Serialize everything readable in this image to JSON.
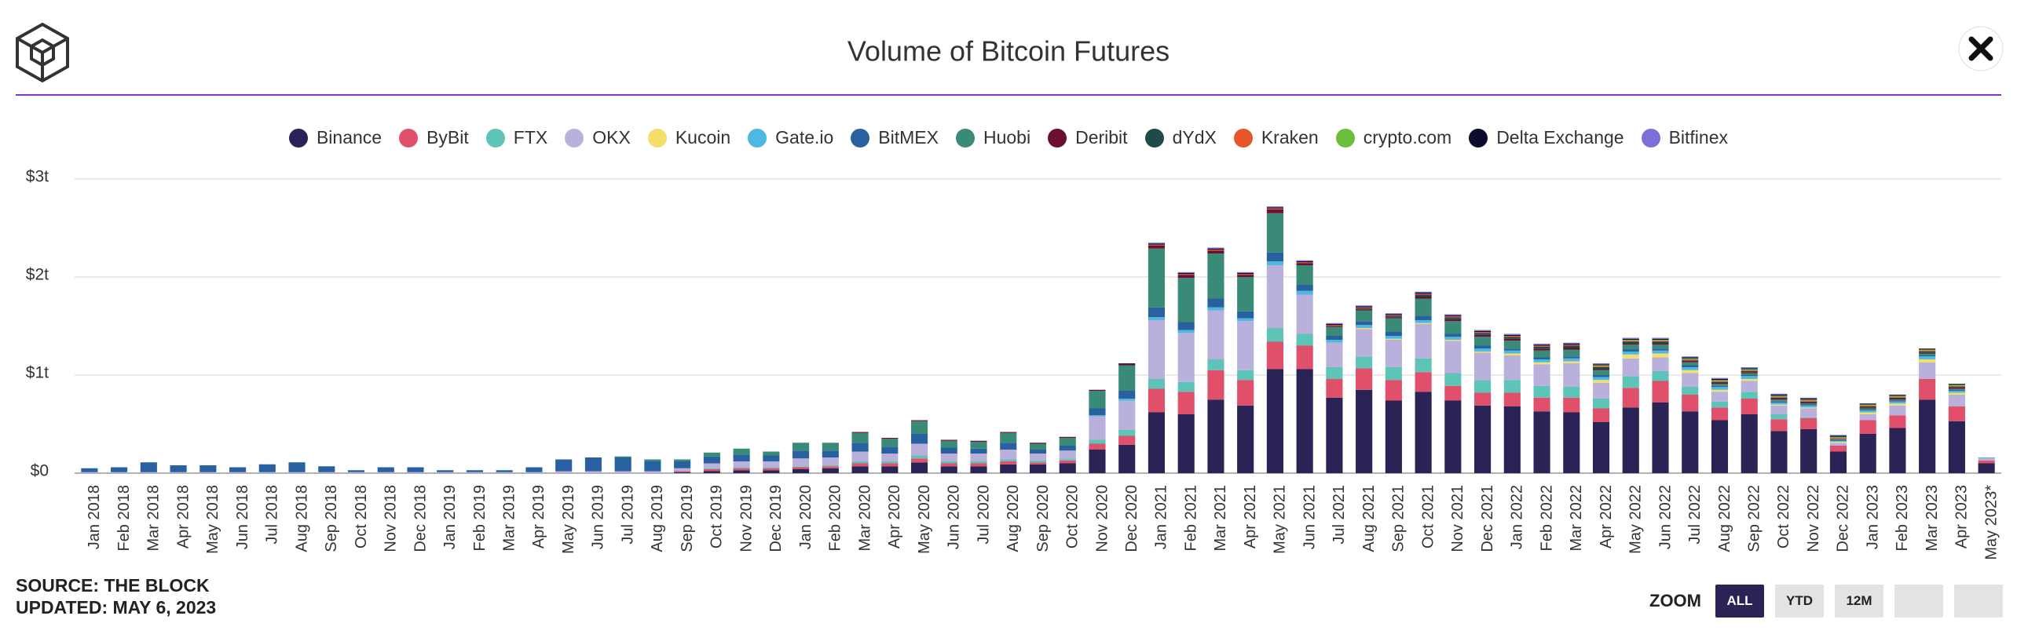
{
  "chart_data": {
    "type": "bar",
    "stacked": true,
    "title": "Volume of Bitcoin Futures",
    "categories": [
      "Jan 2018",
      "Feb 2018",
      "Mar 2018",
      "Apr 2018",
      "May 2018",
      "Jun 2018",
      "Jul 2018",
      "Aug 2018",
      "Sep 2018",
      "Oct 2018",
      "Nov 2018",
      "Dec 2018",
      "Jan 2019",
      "Feb 2019",
      "Mar 2019",
      "Apr 2019",
      "May 2019",
      "Jun 2019",
      "Jul 2019",
      "Aug 2019",
      "Sep 2019",
      "Oct 2019",
      "Nov 2019",
      "Dec 2019",
      "Jan 2020",
      "Feb 2020",
      "Mar 2020",
      "Apr 2020",
      "May 2020",
      "Jun 2020",
      "Jul 2020",
      "Aug 2020",
      "Sep 2020",
      "Oct 2020",
      "Nov 2020",
      "Dec 2020",
      "Jan 2021",
      "Feb 2021",
      "Mar 2021",
      "Apr 2021",
      "May 2021",
      "Jun 2021",
      "Jul 2021",
      "Aug 2021",
      "Sep 2021",
      "Oct 2021",
      "Nov 2021",
      "Dec 2021",
      "Jan 2022",
      "Feb 2022",
      "Mar 2022",
      "Apr 2022",
      "May 2022",
      "Jun 2022",
      "Jul 2022",
      "Aug 2022",
      "Sep 2022",
      "Oct 2022",
      "Nov 2022",
      "Dec 2022",
      "Jan 2023",
      "Feb 2023",
      "Mar 2023",
      "Apr 2023",
      "May 2023*"
    ],
    "ylim": [
      0,
      3
    ],
    "yticks": [
      {
        "value": 0,
        "label": "$0"
      },
      {
        "value": 1,
        "label": "$1t"
      },
      {
        "value": 2,
        "label": "$2t"
      },
      {
        "value": 3,
        "label": "$3t"
      }
    ],
    "grid": true,
    "legend": "top",
    "series": [
      {
        "name": "Binance",
        "color": "#2a2356",
        "values": [
          0,
          0,
          0,
          0,
          0,
          0,
          0,
          0,
          0,
          0,
          0,
          0,
          0,
          0,
          0,
          0,
          0,
          0,
          0,
          0,
          0.01,
          0.02,
          0.03,
          0.03,
          0.04,
          0.05,
          0.07,
          0.07,
          0.11,
          0.07,
          0.07,
          0.09,
          0.09,
          0.1,
          0.24,
          0.29,
          0.62,
          0.6,
          0.75,
          0.69,
          1.06,
          1.06,
          0.77,
          0.85,
          0.74,
          0.83,
          0.74,
          0.69,
          0.68,
          0.63,
          0.62,
          0.52,
          0.67,
          0.72,
          0.63,
          0.54,
          0.6,
          0.43,
          0.45,
          0.22,
          0.4,
          0.46,
          0.75,
          0.53,
          0.1
        ]
      },
      {
        "name": "ByBit",
        "color": "#e0506a",
        "values": [
          0,
          0,
          0,
          0,
          0,
          0,
          0,
          0,
          0,
          0,
          0,
          0,
          0,
          0,
          0,
          0,
          0,
          0,
          0,
          0,
          0.01,
          0.02,
          0.02,
          0.02,
          0.02,
          0.02,
          0.03,
          0.03,
          0.04,
          0.03,
          0.03,
          0.03,
          0.02,
          0.03,
          0.06,
          0.09,
          0.24,
          0.23,
          0.3,
          0.26,
          0.28,
          0.24,
          0.19,
          0.22,
          0.21,
          0.2,
          0.15,
          0.13,
          0.14,
          0.14,
          0.15,
          0.14,
          0.2,
          0.22,
          0.17,
          0.13,
          0.16,
          0.12,
          0.11,
          0.06,
          0.14,
          0.13,
          0.21,
          0.15,
          0.03
        ]
      },
      {
        "name": "FTX",
        "color": "#5fc4b8",
        "values": [
          0,
          0,
          0,
          0,
          0,
          0,
          0,
          0,
          0,
          0,
          0,
          0,
          0,
          0,
          0,
          0,
          0,
          0,
          0,
          0,
          0,
          0.01,
          0.01,
          0.01,
          0.01,
          0.01,
          0.02,
          0.02,
          0.03,
          0.02,
          0.02,
          0.02,
          0.02,
          0.02,
          0.04,
          0.06,
          0.1,
          0.1,
          0.11,
          0.1,
          0.14,
          0.12,
          0.12,
          0.12,
          0.13,
          0.14,
          0.13,
          0.13,
          0.13,
          0.12,
          0.11,
          0.1,
          0.12,
          0.1,
          0.08,
          0.06,
          0.07,
          0.05,
          0.01,
          0,
          0,
          0,
          0,
          0,
          0
        ]
      },
      {
        "name": "OKX",
        "color": "#b9b1dc",
        "values": [
          0.01,
          0.01,
          0.01,
          0.01,
          0.01,
          0.01,
          0.01,
          0.01,
          0.01,
          0.01,
          0.01,
          0.01,
          0.01,
          0.01,
          0.01,
          0.01,
          0.02,
          0.02,
          0.02,
          0.02,
          0.03,
          0.05,
          0.06,
          0.06,
          0.08,
          0.08,
          0.1,
          0.08,
          0.12,
          0.08,
          0.08,
          0.1,
          0.07,
          0.08,
          0.24,
          0.3,
          0.6,
          0.5,
          0.5,
          0.5,
          0.64,
          0.4,
          0.25,
          0.28,
          0.28,
          0.35,
          0.33,
          0.28,
          0.25,
          0.22,
          0.24,
          0.16,
          0.18,
          0.14,
          0.14,
          0.1,
          0.11,
          0.09,
          0.09,
          0.03,
          0.06,
          0.1,
          0.17,
          0.12,
          0.02
        ]
      },
      {
        "name": "Kucoin",
        "color": "#f5df6a",
        "values": [
          0,
          0,
          0,
          0,
          0,
          0,
          0,
          0,
          0,
          0,
          0,
          0,
          0,
          0,
          0,
          0,
          0,
          0,
          0,
          0,
          0,
          0,
          0,
          0,
          0,
          0,
          0,
          0,
          0,
          0,
          0,
          0,
          0,
          0,
          0,
          0,
          0,
          0,
          0,
          0,
          0,
          0,
          0,
          0.01,
          0.01,
          0.01,
          0.01,
          0.01,
          0.02,
          0.02,
          0.02,
          0.03,
          0.04,
          0.04,
          0.03,
          0.02,
          0.02,
          0.01,
          0.01,
          0.01,
          0.02,
          0.02,
          0.03,
          0.02,
          0
        ]
      },
      {
        "name": "Gate.io",
        "color": "#4fb8e0",
        "values": [
          0,
          0,
          0,
          0,
          0,
          0,
          0,
          0,
          0,
          0,
          0,
          0,
          0,
          0,
          0,
          0,
          0,
          0,
          0,
          0,
          0,
          0,
          0,
          0,
          0,
          0,
          0,
          0,
          0,
          0,
          0,
          0,
          0,
          0,
          0.01,
          0.02,
          0.03,
          0.03,
          0.03,
          0.03,
          0.04,
          0.04,
          0.03,
          0.03,
          0.03,
          0.03,
          0.03,
          0.03,
          0.03,
          0.03,
          0.03,
          0.03,
          0.03,
          0.03,
          0.03,
          0.03,
          0.03,
          0.02,
          0.02,
          0.01,
          0.02,
          0.02,
          0.03,
          0.02,
          0.01
        ]
      },
      {
        "name": "BitMEX",
        "color": "#2860a0",
        "values": [
          0.04,
          0.05,
          0.1,
          0.07,
          0.07,
          0.05,
          0.08,
          0.1,
          0.06,
          0.02,
          0.05,
          0.05,
          0.02,
          0.02,
          0.02,
          0.05,
          0.12,
          0.14,
          0.14,
          0.1,
          0.07,
          0.07,
          0.07,
          0.06,
          0.08,
          0.07,
          0.09,
          0.07,
          0.1,
          0.06,
          0.05,
          0.07,
          0.04,
          0.05,
          0.07,
          0.08,
          0.1,
          0.08,
          0.09,
          0.07,
          0.09,
          0.06,
          0.04,
          0.04,
          0.04,
          0.04,
          0.03,
          0.03,
          0.02,
          0.02,
          0.02,
          0.02,
          0.02,
          0.02,
          0.02,
          0.01,
          0.01,
          0.01,
          0.01,
          0.01,
          0.01,
          0.01,
          0.01,
          0.01,
          0
        ]
      },
      {
        "name": "Huobi",
        "color": "#3a8a78",
        "values": [
          0,
          0,
          0,
          0,
          0,
          0,
          0,
          0,
          0,
          0,
          0,
          0,
          0,
          0,
          0,
          0,
          0,
          0,
          0.01,
          0.02,
          0.02,
          0.04,
          0.06,
          0.04,
          0.08,
          0.08,
          0.1,
          0.08,
          0.13,
          0.07,
          0.07,
          0.1,
          0.06,
          0.08,
          0.18,
          0.26,
          0.6,
          0.45,
          0.46,
          0.35,
          0.4,
          0.2,
          0.09,
          0.11,
          0.14,
          0.18,
          0.13,
          0.09,
          0.08,
          0.07,
          0.07,
          0.05,
          0.05,
          0.04,
          0.03,
          0.02,
          0.02,
          0.02,
          0.01,
          0.01,
          0.01,
          0.01,
          0.02,
          0.01,
          0
        ]
      },
      {
        "name": "Deribit",
        "color": "#6b1030",
        "values": [
          0,
          0,
          0,
          0,
          0,
          0,
          0,
          0,
          0,
          0,
          0,
          0,
          0,
          0,
          0,
          0,
          0,
          0,
          0,
          0,
          0,
          0,
          0,
          0,
          0,
          0,
          0.01,
          0.01,
          0.01,
          0.01,
          0.01,
          0.01,
          0.01,
          0.01,
          0.01,
          0.02,
          0.03,
          0.03,
          0.03,
          0.02,
          0.04,
          0.02,
          0.01,
          0.01,
          0.01,
          0.02,
          0.02,
          0.02,
          0.02,
          0.02,
          0.02,
          0.01,
          0.01,
          0.01,
          0.01,
          0.01,
          0.01,
          0.01,
          0.01,
          0,
          0.01,
          0.01,
          0.01,
          0.01,
          0
        ]
      },
      {
        "name": "dYdX",
        "color": "#1f4a48",
        "values": [
          0,
          0,
          0,
          0,
          0,
          0,
          0,
          0,
          0,
          0,
          0,
          0,
          0,
          0,
          0,
          0,
          0,
          0,
          0,
          0,
          0,
          0,
          0,
          0,
          0,
          0,
          0,
          0,
          0,
          0,
          0,
          0,
          0,
          0,
          0,
          0,
          0,
          0,
          0,
          0,
          0,
          0,
          0,
          0.01,
          0.01,
          0.02,
          0.02,
          0.02,
          0.02,
          0.02,
          0.02,
          0.02,
          0.02,
          0.02,
          0.01,
          0.01,
          0.01,
          0.01,
          0.01,
          0,
          0.01,
          0.01,
          0.01,
          0.01,
          0
        ]
      },
      {
        "name": "Kraken",
        "color": "#e8542c",
        "values": [
          0,
          0,
          0,
          0,
          0,
          0,
          0,
          0,
          0,
          0,
          0,
          0,
          0,
          0,
          0,
          0,
          0,
          0,
          0,
          0,
          0,
          0,
          0,
          0,
          0,
          0,
          0,
          0,
          0,
          0,
          0,
          0,
          0,
          0,
          0,
          0,
          0.01,
          0.01,
          0.01,
          0.01,
          0.01,
          0.01,
          0.01,
          0.01,
          0.01,
          0.01,
          0.01,
          0.01,
          0.01,
          0.01,
          0.01,
          0.01,
          0.01,
          0.01,
          0.01,
          0.01,
          0.01,
          0.01,
          0.01,
          0.01,
          0.01,
          0.01,
          0.01,
          0.01,
          0
        ]
      },
      {
        "name": "crypto.com",
        "color": "#6cbf3c",
        "values": [
          0,
          0,
          0,
          0,
          0,
          0,
          0,
          0,
          0,
          0,
          0,
          0,
          0,
          0,
          0,
          0,
          0,
          0,
          0,
          0,
          0,
          0,
          0,
          0,
          0,
          0,
          0,
          0,
          0,
          0,
          0,
          0,
          0,
          0,
          0,
          0,
          0,
          0,
          0,
          0,
          0,
          0,
          0,
          0,
          0,
          0,
          0,
          0,
          0,
          0,
          0,
          0.01,
          0.01,
          0.01,
          0.01,
          0.01,
          0.01,
          0.01,
          0.01,
          0.01,
          0.01,
          0.01,
          0.01,
          0.01,
          0
        ]
      },
      {
        "name": "Delta Exchange",
        "color": "#0c0c30",
        "values": [
          0,
          0,
          0,
          0,
          0,
          0,
          0,
          0,
          0,
          0,
          0,
          0,
          0,
          0,
          0,
          0,
          0,
          0,
          0,
          0,
          0,
          0,
          0,
          0,
          0,
          0,
          0,
          0,
          0,
          0,
          0,
          0,
          0,
          0,
          0,
          0,
          0.01,
          0.01,
          0.01,
          0.01,
          0.01,
          0.01,
          0.01,
          0.01,
          0.01,
          0.01,
          0.01,
          0.01,
          0.01,
          0.01,
          0.01,
          0.01,
          0.01,
          0.01,
          0.01,
          0.01,
          0.01,
          0.01,
          0.01,
          0.01,
          0.01,
          0.01,
          0.01,
          0.01,
          0
        ]
      },
      {
        "name": "Bitfinex",
        "color": "#7a70d8",
        "values": [
          0,
          0,
          0,
          0,
          0,
          0,
          0,
          0,
          0,
          0,
          0,
          0,
          0,
          0,
          0,
          0,
          0,
          0,
          0,
          0,
          0,
          0,
          0,
          0,
          0,
          0,
          0,
          0,
          0,
          0,
          0,
          0,
          0,
          0,
          0,
          0,
          0.01,
          0.01,
          0.01,
          0.01,
          0.01,
          0.01,
          0.01,
          0.01,
          0.01,
          0.01,
          0.01,
          0.01,
          0.01,
          0.01,
          0.01,
          0.01,
          0.01,
          0.01,
          0.01,
          0.01,
          0.01,
          0.01,
          0.01,
          0.01,
          0,
          0,
          0,
          0,
          0
        ]
      }
    ]
  },
  "footer": {
    "source": "SOURCE: THE BLOCK",
    "updated": "UPDATED: MAY 6, 2023"
  },
  "zoom": {
    "label": "ZOOM",
    "buttons": [
      "ALL",
      "YTD",
      "12M"
    ]
  }
}
